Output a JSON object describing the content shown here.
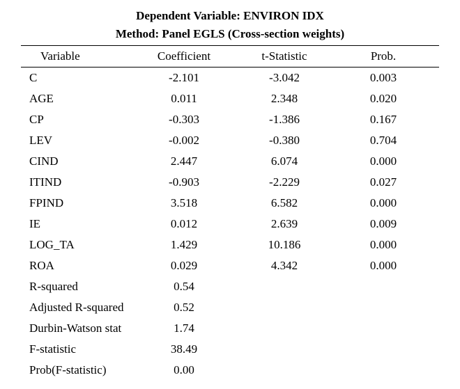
{
  "header": {
    "line1": "Dependent Variable: ENVIRON IDX",
    "line2": "Method: Panel EGLS (Cross-section weights)"
  },
  "columns": {
    "variable": "Variable",
    "coefficient": "Coefficient",
    "tstat": "t-Statistic",
    "prob": "Prob."
  },
  "rows": [
    {
      "variable": "C",
      "coefficient": "-2.101",
      "tstat": "-3.042",
      "prob": "0.003"
    },
    {
      "variable": "AGE",
      "coefficient": "0.011",
      "tstat": "2.348",
      "prob": "0.020"
    },
    {
      "variable": "CP",
      "coefficient": "-0.303",
      "tstat": "-1.386",
      "prob": "0.167"
    },
    {
      "variable": "LEV",
      "coefficient": "-0.002",
      "tstat": "-0.380",
      "prob": "0.704"
    },
    {
      "variable": "CIND",
      "coefficient": "2.447",
      "tstat": "6.074",
      "prob": "0.000"
    },
    {
      "variable": "ITIND",
      "coefficient": "-0.903",
      "tstat": "-2.229",
      "prob": "0.027"
    },
    {
      "variable": "FPIND",
      "coefficient": "3.518",
      "tstat": "6.582",
      "prob": "0.000"
    },
    {
      "variable": "IE",
      "coefficient": "0.012",
      "tstat": "2.639",
      "prob": "0.009"
    },
    {
      "variable": "LOG_TA",
      "coefficient": "1.429",
      "tstat": "10.186",
      "prob": "0.000"
    },
    {
      "variable": "ROA",
      "coefficient": "0.029",
      "tstat": "4.342",
      "prob": "0.000"
    }
  ],
  "stats": [
    {
      "label": "R-squared",
      "value": "0.54"
    },
    {
      "label": "Adjusted R-squared",
      "value": "0.52"
    },
    {
      "label": "Durbin-Watson stat",
      "value": "1.74"
    },
    {
      "label": "F-statistic",
      "value": "38.49"
    },
    {
      "label": "Prob(F-statistic)",
      "value": "0.00"
    }
  ],
  "styling": {
    "font_family": "Times New Roman",
    "background_color": "#ffffff",
    "text_color": "#000000",
    "border_color": "#000000",
    "header_fontsize": 17,
    "body_fontsize": 17
  }
}
